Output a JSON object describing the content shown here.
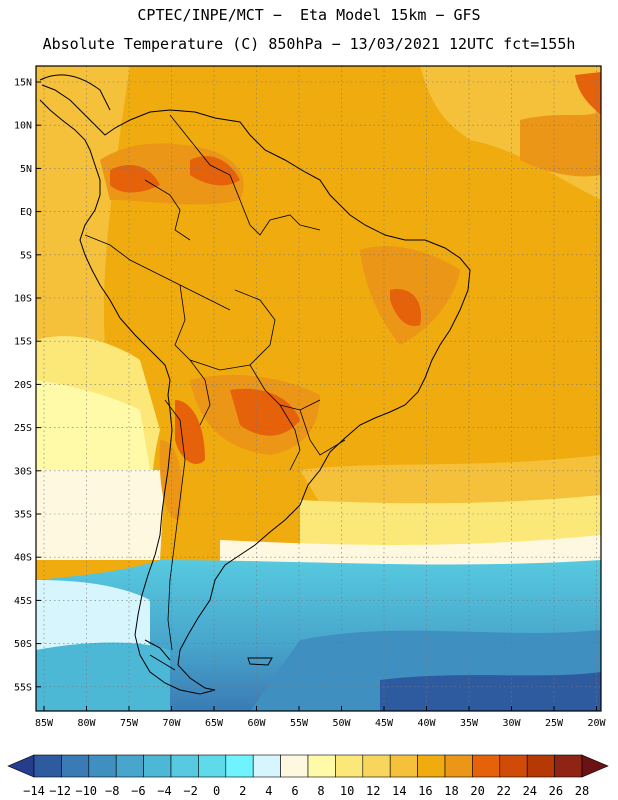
{
  "header": {
    "line1": "CPTEC/INPE/MCT −  Eta Model 15km − GFS",
    "line2": "Absolute Temperature (C) 850hPa − 13/03/2021 12UTC fct=155h"
  },
  "map": {
    "region": "South America",
    "variable": "Absolute Temperature",
    "units": "C",
    "level": "850hPa",
    "date": "13/03/2021",
    "run": "12UTC",
    "forecast": "fct=155h",
    "lat_labels": [
      "15N",
      "10N",
      "5N",
      "EQ",
      "5S",
      "10S",
      "15S",
      "20S",
      "25S",
      "30S",
      "35S",
      "40S",
      "45S",
      "50S",
      "55S"
    ],
    "lon_labels": [
      "85W",
      "80W",
      "75W",
      "70W",
      "65W",
      "60W",
      "55W",
      "50W",
      "45W",
      "40W",
      "35W",
      "30W",
      "25W",
      "20W"
    ]
  },
  "colorbar": {
    "labels": [
      "−14",
      "−12",
      "−10",
      "−8",
      "−6",
      "−4",
      "−2",
      "0",
      "2",
      "4",
      "6",
      "8",
      "10",
      "12",
      "14",
      "16",
      "18",
      "20",
      "22",
      "24",
      "26",
      "28"
    ],
    "colors": [
      "#253d8c",
      "#2e5ba0",
      "#3a7bb5",
      "#3f8fc0",
      "#48a6cc",
      "#4db8d6",
      "#57c9e0",
      "#5fdaea",
      "#6ff4ff",
      "#d6f5fc",
      "#fff8e0",
      "#fffaa8",
      "#fbe878",
      "#f8d55c",
      "#f5c13a",
      "#f0ab0e",
      "#eb9616",
      "#e6620a",
      "#d14b08",
      "#b53805",
      "#8f2415",
      "#6b1215"
    ]
  }
}
